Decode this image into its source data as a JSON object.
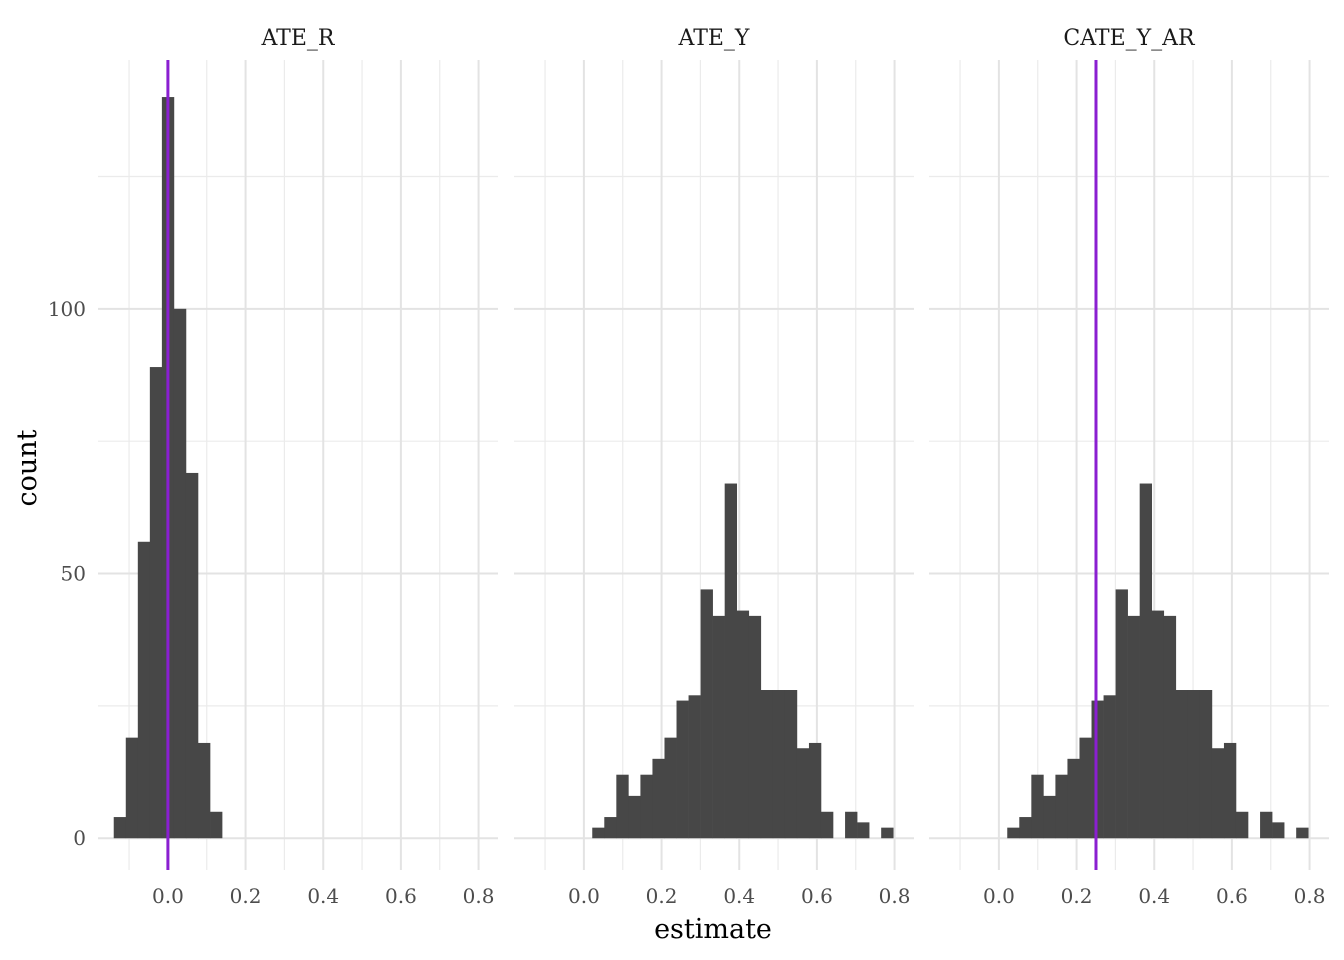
{
  "chart_data": {
    "type": "histogram",
    "xlabel": "estimate",
    "ylabel": "count",
    "xlim": [
      -0.18,
      0.85
    ],
    "ylim": [
      -6,
      147
    ],
    "x_ticks": [
      0.0,
      0.2,
      0.4,
      0.6,
      0.8
    ],
    "x_tick_labels": [
      "0.0",
      "0.2",
      "0.4",
      "0.6",
      "0.8"
    ],
    "y_ticks": [
      0,
      50,
      100
    ],
    "y_tick_labels": [
      "0",
      "50",
      "100"
    ],
    "grid": true,
    "bar_color": "#474747",
    "vline_color": "#8a1fd1",
    "bin_width": 0.031,
    "panels": [
      {
        "title": "ATE_R",
        "vline": 0.0,
        "bins": [
          {
            "x": -0.124,
            "count": 4
          },
          {
            "x": -0.093,
            "count": 19
          },
          {
            "x": -0.062,
            "count": 56
          },
          {
            "x": -0.031,
            "count": 89
          },
          {
            "x": 0.0,
            "count": 140
          },
          {
            "x": 0.031,
            "count": 100
          },
          {
            "x": 0.062,
            "count": 69
          },
          {
            "x": 0.093,
            "count": 18
          },
          {
            "x": 0.124,
            "count": 5
          }
        ]
      },
      {
        "title": "ATE_Y",
        "vline": null,
        "bins": [
          {
            "x": 0.037,
            "count": 2
          },
          {
            "x": 0.068,
            "count": 4
          },
          {
            "x": 0.099,
            "count": 12
          },
          {
            "x": 0.13,
            "count": 8
          },
          {
            "x": 0.161,
            "count": 12
          },
          {
            "x": 0.192,
            "count": 15
          },
          {
            "x": 0.223,
            "count": 19
          },
          {
            "x": 0.254,
            "count": 26
          },
          {
            "x": 0.285,
            "count": 27
          },
          {
            "x": 0.316,
            "count": 47
          },
          {
            "x": 0.347,
            "count": 42
          },
          {
            "x": 0.378,
            "count": 67
          },
          {
            "x": 0.409,
            "count": 43
          },
          {
            "x": 0.44,
            "count": 42
          },
          {
            "x": 0.471,
            "count": 28
          },
          {
            "x": 0.502,
            "count": 28
          },
          {
            "x": 0.533,
            "count": 28
          },
          {
            "x": 0.564,
            "count": 17
          },
          {
            "x": 0.595,
            "count": 18
          },
          {
            "x": 0.626,
            "count": 5
          },
          {
            "x": 0.657,
            "count": 0
          },
          {
            "x": 0.688,
            "count": 5
          },
          {
            "x": 0.719,
            "count": 3
          },
          {
            "x": 0.75,
            "count": 0
          },
          {
            "x": 0.781,
            "count": 2
          }
        ]
      },
      {
        "title": "CATE_Y_AR",
        "vline": 0.25,
        "bins": [
          {
            "x": 0.037,
            "count": 2
          },
          {
            "x": 0.068,
            "count": 4
          },
          {
            "x": 0.099,
            "count": 12
          },
          {
            "x": 0.13,
            "count": 8
          },
          {
            "x": 0.161,
            "count": 12
          },
          {
            "x": 0.192,
            "count": 15
          },
          {
            "x": 0.223,
            "count": 19
          },
          {
            "x": 0.254,
            "count": 26
          },
          {
            "x": 0.285,
            "count": 27
          },
          {
            "x": 0.316,
            "count": 47
          },
          {
            "x": 0.347,
            "count": 42
          },
          {
            "x": 0.378,
            "count": 67
          },
          {
            "x": 0.409,
            "count": 43
          },
          {
            "x": 0.44,
            "count": 42
          },
          {
            "x": 0.471,
            "count": 28
          },
          {
            "x": 0.502,
            "count": 28
          },
          {
            "x": 0.533,
            "count": 28
          },
          {
            "x": 0.564,
            "count": 17
          },
          {
            "x": 0.595,
            "count": 18
          },
          {
            "x": 0.626,
            "count": 5
          },
          {
            "x": 0.657,
            "count": 0
          },
          {
            "x": 0.688,
            "count": 5
          },
          {
            "x": 0.719,
            "count": 3
          },
          {
            "x": 0.75,
            "count": 0
          },
          {
            "x": 0.781,
            "count": 2
          }
        ]
      }
    ]
  }
}
